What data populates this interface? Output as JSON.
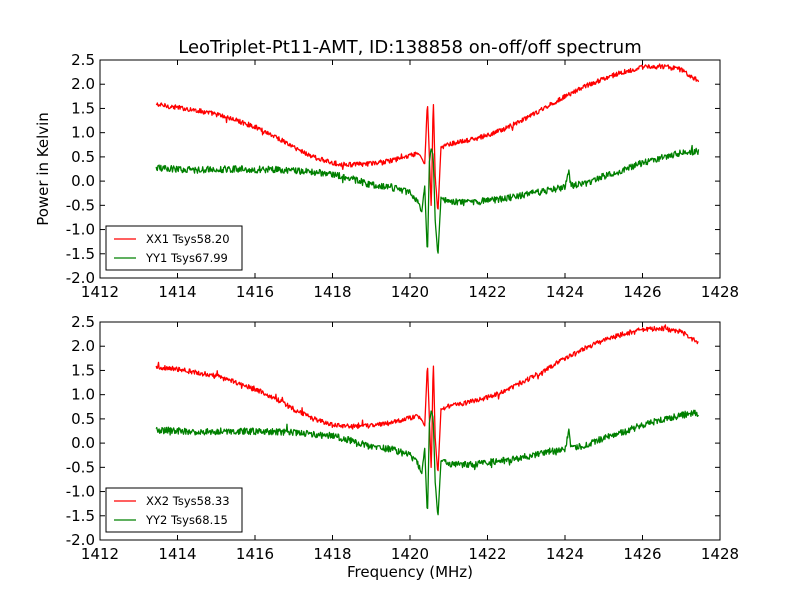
{
  "chart_data": [
    {
      "type": "line",
      "title": "LeoTriplet-Pt11-AMT, ID:138858 on-off/off spectrum",
      "xlabel": "",
      "ylabel": "Power in Kelvin",
      "xlim": [
        1412,
        1428
      ],
      "ylim": [
        -2.0,
        2.5
      ],
      "xticks": [
        "1412",
        "1414",
        "1416",
        "1418",
        "1420",
        "1422",
        "1424",
        "1426",
        "1428"
      ],
      "yticks": [
        "-2.0",
        "-1.5",
        "-1.0",
        "-0.5",
        "0.0",
        "0.5",
        "1.0",
        "1.5",
        "2.0",
        "2.5"
      ],
      "grid": false,
      "legend_position": "lower-left",
      "series": [
        {
          "name": "XX1 Tsys58.20",
          "color": "#ff0000",
          "noise": 0.05,
          "points": [
            [
              1413.45,
              1.58
            ],
            [
              1414,
              1.52
            ],
            [
              1414.5,
              1.46
            ],
            [
              1415,
              1.38
            ],
            [
              1415.5,
              1.26
            ],
            [
              1416,
              1.12
            ],
            [
              1416.5,
              0.93
            ],
            [
              1417,
              0.7
            ],
            [
              1417.5,
              0.5
            ],
            [
              1418,
              0.37
            ],
            [
              1418.5,
              0.34
            ],
            [
              1419,
              0.36
            ],
            [
              1419.5,
              0.42
            ],
            [
              1420,
              0.52
            ],
            [
              1420.2,
              0.58
            ],
            [
              1420.3,
              0.48
            ],
            [
              1420.38,
              0.35
            ],
            [
              1420.45,
              1.65
            ],
            [
              1420.5,
              0.5
            ],
            [
              1420.55,
              -0.6
            ],
            [
              1420.6,
              1.75
            ],
            [
              1420.65,
              0.1
            ],
            [
              1420.72,
              -0.65
            ],
            [
              1420.8,
              0.7
            ],
            [
              1421,
              0.76
            ],
            [
              1421.5,
              0.84
            ],
            [
              1422,
              0.94
            ],
            [
              1422.5,
              1.1
            ],
            [
              1423,
              1.3
            ],
            [
              1423.5,
              1.52
            ],
            [
              1424,
              1.75
            ],
            [
              1424.5,
              1.95
            ],
            [
              1425,
              2.12
            ],
            [
              1425.5,
              2.25
            ],
            [
              1426,
              2.35
            ],
            [
              1426.5,
              2.37
            ],
            [
              1427,
              2.3
            ],
            [
              1427.45,
              2.07
            ]
          ]
        },
        {
          "name": "YY1 Tsys67.99",
          "color": "#008000",
          "noise": 0.07,
          "points": [
            [
              1413.45,
              0.27
            ],
            [
              1414,
              0.25
            ],
            [
              1414.5,
              0.23
            ],
            [
              1415,
              0.24
            ],
            [
              1415.5,
              0.25
            ],
            [
              1416,
              0.24
            ],
            [
              1416.5,
              0.24
            ],
            [
              1417,
              0.22
            ],
            [
              1417.5,
              0.18
            ],
            [
              1418,
              0.15
            ],
            [
              1418.5,
              0.05
            ],
            [
              1419,
              -0.08
            ],
            [
              1419.5,
              -0.12
            ],
            [
              1420,
              -0.25
            ],
            [
              1420.2,
              -0.4
            ],
            [
              1420.3,
              -0.65
            ],
            [
              1420.38,
              -0.1
            ],
            [
              1420.45,
              -1.55
            ],
            [
              1420.5,
              0.4
            ],
            [
              1420.55,
              0.7
            ],
            [
              1420.6,
              0.5
            ],
            [
              1420.65,
              -0.8
            ],
            [
              1420.72,
              -1.55
            ],
            [
              1420.8,
              -0.35
            ],
            [
              1421,
              -0.42
            ],
            [
              1421.5,
              -0.45
            ],
            [
              1422,
              -0.4
            ],
            [
              1422.5,
              -0.35
            ],
            [
              1423,
              -0.28
            ],
            [
              1423.5,
              -0.2
            ],
            [
              1424,
              -0.12
            ],
            [
              1424.1,
              0.25
            ],
            [
              1424.15,
              -0.1
            ],
            [
              1424.5,
              -0.05
            ],
            [
              1425,
              0.1
            ],
            [
              1425.5,
              0.22
            ],
            [
              1426,
              0.38
            ],
            [
              1426.5,
              0.48
            ],
            [
              1427,
              0.58
            ],
            [
              1427.45,
              0.62
            ]
          ]
        }
      ]
    },
    {
      "type": "line",
      "title": "",
      "xlabel": "Frequency (MHz)",
      "ylabel": "",
      "xlim": [
        1412,
        1428
      ],
      "ylim": [
        -2.0,
        2.5
      ],
      "xticks": [
        "1412",
        "1414",
        "1416",
        "1418",
        "1420",
        "1422",
        "1424",
        "1426",
        "1428"
      ],
      "yticks": [
        "-2.0",
        "-1.5",
        "-1.0",
        "-0.5",
        "0.0",
        "0.5",
        "1.0",
        "1.5",
        "2.0",
        "2.5"
      ],
      "grid": false,
      "legend_position": "lower-left",
      "series": [
        {
          "name": "XX2 Tsys58.33",
          "color": "#ff0000",
          "noise": 0.05,
          "points": [
            [
              1413.45,
              1.58
            ],
            [
              1414,
              1.52
            ],
            [
              1414.5,
              1.46
            ],
            [
              1415,
              1.38
            ],
            [
              1415.5,
              1.26
            ],
            [
              1416,
              1.12
            ],
            [
              1416.5,
              0.93
            ],
            [
              1417,
              0.7
            ],
            [
              1417.5,
              0.5
            ],
            [
              1418,
              0.37
            ],
            [
              1418.5,
              0.34
            ],
            [
              1419,
              0.36
            ],
            [
              1419.5,
              0.42
            ],
            [
              1420,
              0.52
            ],
            [
              1420.2,
              0.58
            ],
            [
              1420.3,
              0.48
            ],
            [
              1420.38,
              0.35
            ],
            [
              1420.45,
              1.65
            ],
            [
              1420.5,
              0.5
            ],
            [
              1420.55,
              -0.6
            ],
            [
              1420.6,
              1.75
            ],
            [
              1420.65,
              0.1
            ],
            [
              1420.72,
              -0.65
            ],
            [
              1420.8,
              0.7
            ],
            [
              1421,
              0.76
            ],
            [
              1421.5,
              0.84
            ],
            [
              1422,
              0.94
            ],
            [
              1422.5,
              1.1
            ],
            [
              1423,
              1.3
            ],
            [
              1423.5,
              1.52
            ],
            [
              1424,
              1.75
            ],
            [
              1424.5,
              1.95
            ],
            [
              1425,
              2.12
            ],
            [
              1425.5,
              2.25
            ],
            [
              1426,
              2.35
            ],
            [
              1426.5,
              2.37
            ],
            [
              1427,
              2.3
            ],
            [
              1427.45,
              2.07
            ]
          ]
        },
        {
          "name": "YY2 Tsys68.15",
          "color": "#008000",
          "noise": 0.07,
          "points": [
            [
              1413.45,
              0.27
            ],
            [
              1414,
              0.25
            ],
            [
              1414.5,
              0.23
            ],
            [
              1415,
              0.24
            ],
            [
              1415.5,
              0.25
            ],
            [
              1416,
              0.24
            ],
            [
              1416.5,
              0.24
            ],
            [
              1417,
              0.22
            ],
            [
              1417.5,
              0.18
            ],
            [
              1418,
              0.15
            ],
            [
              1418.5,
              0.05
            ],
            [
              1419,
              -0.08
            ],
            [
              1419.5,
              -0.12
            ],
            [
              1420,
              -0.25
            ],
            [
              1420.2,
              -0.4
            ],
            [
              1420.3,
              -0.65
            ],
            [
              1420.38,
              -0.1
            ],
            [
              1420.45,
              -1.55
            ],
            [
              1420.5,
              0.4
            ],
            [
              1420.55,
              0.7
            ],
            [
              1420.6,
              0.5
            ],
            [
              1420.65,
              -0.8
            ],
            [
              1420.72,
              -1.55
            ],
            [
              1420.8,
              -0.35
            ],
            [
              1421,
              -0.42
            ],
            [
              1421.5,
              -0.45
            ],
            [
              1422,
              -0.4
            ],
            [
              1422.5,
              -0.35
            ],
            [
              1423,
              -0.28
            ],
            [
              1423.5,
              -0.2
            ],
            [
              1424,
              -0.12
            ],
            [
              1424.1,
              0.25
            ],
            [
              1424.15,
              -0.1
            ],
            [
              1424.5,
              -0.05
            ],
            [
              1425,
              0.1
            ],
            [
              1425.5,
              0.22
            ],
            [
              1426,
              0.38
            ],
            [
              1426.5,
              0.48
            ],
            [
              1427,
              0.58
            ],
            [
              1427.45,
              0.62
            ]
          ]
        }
      ]
    }
  ]
}
